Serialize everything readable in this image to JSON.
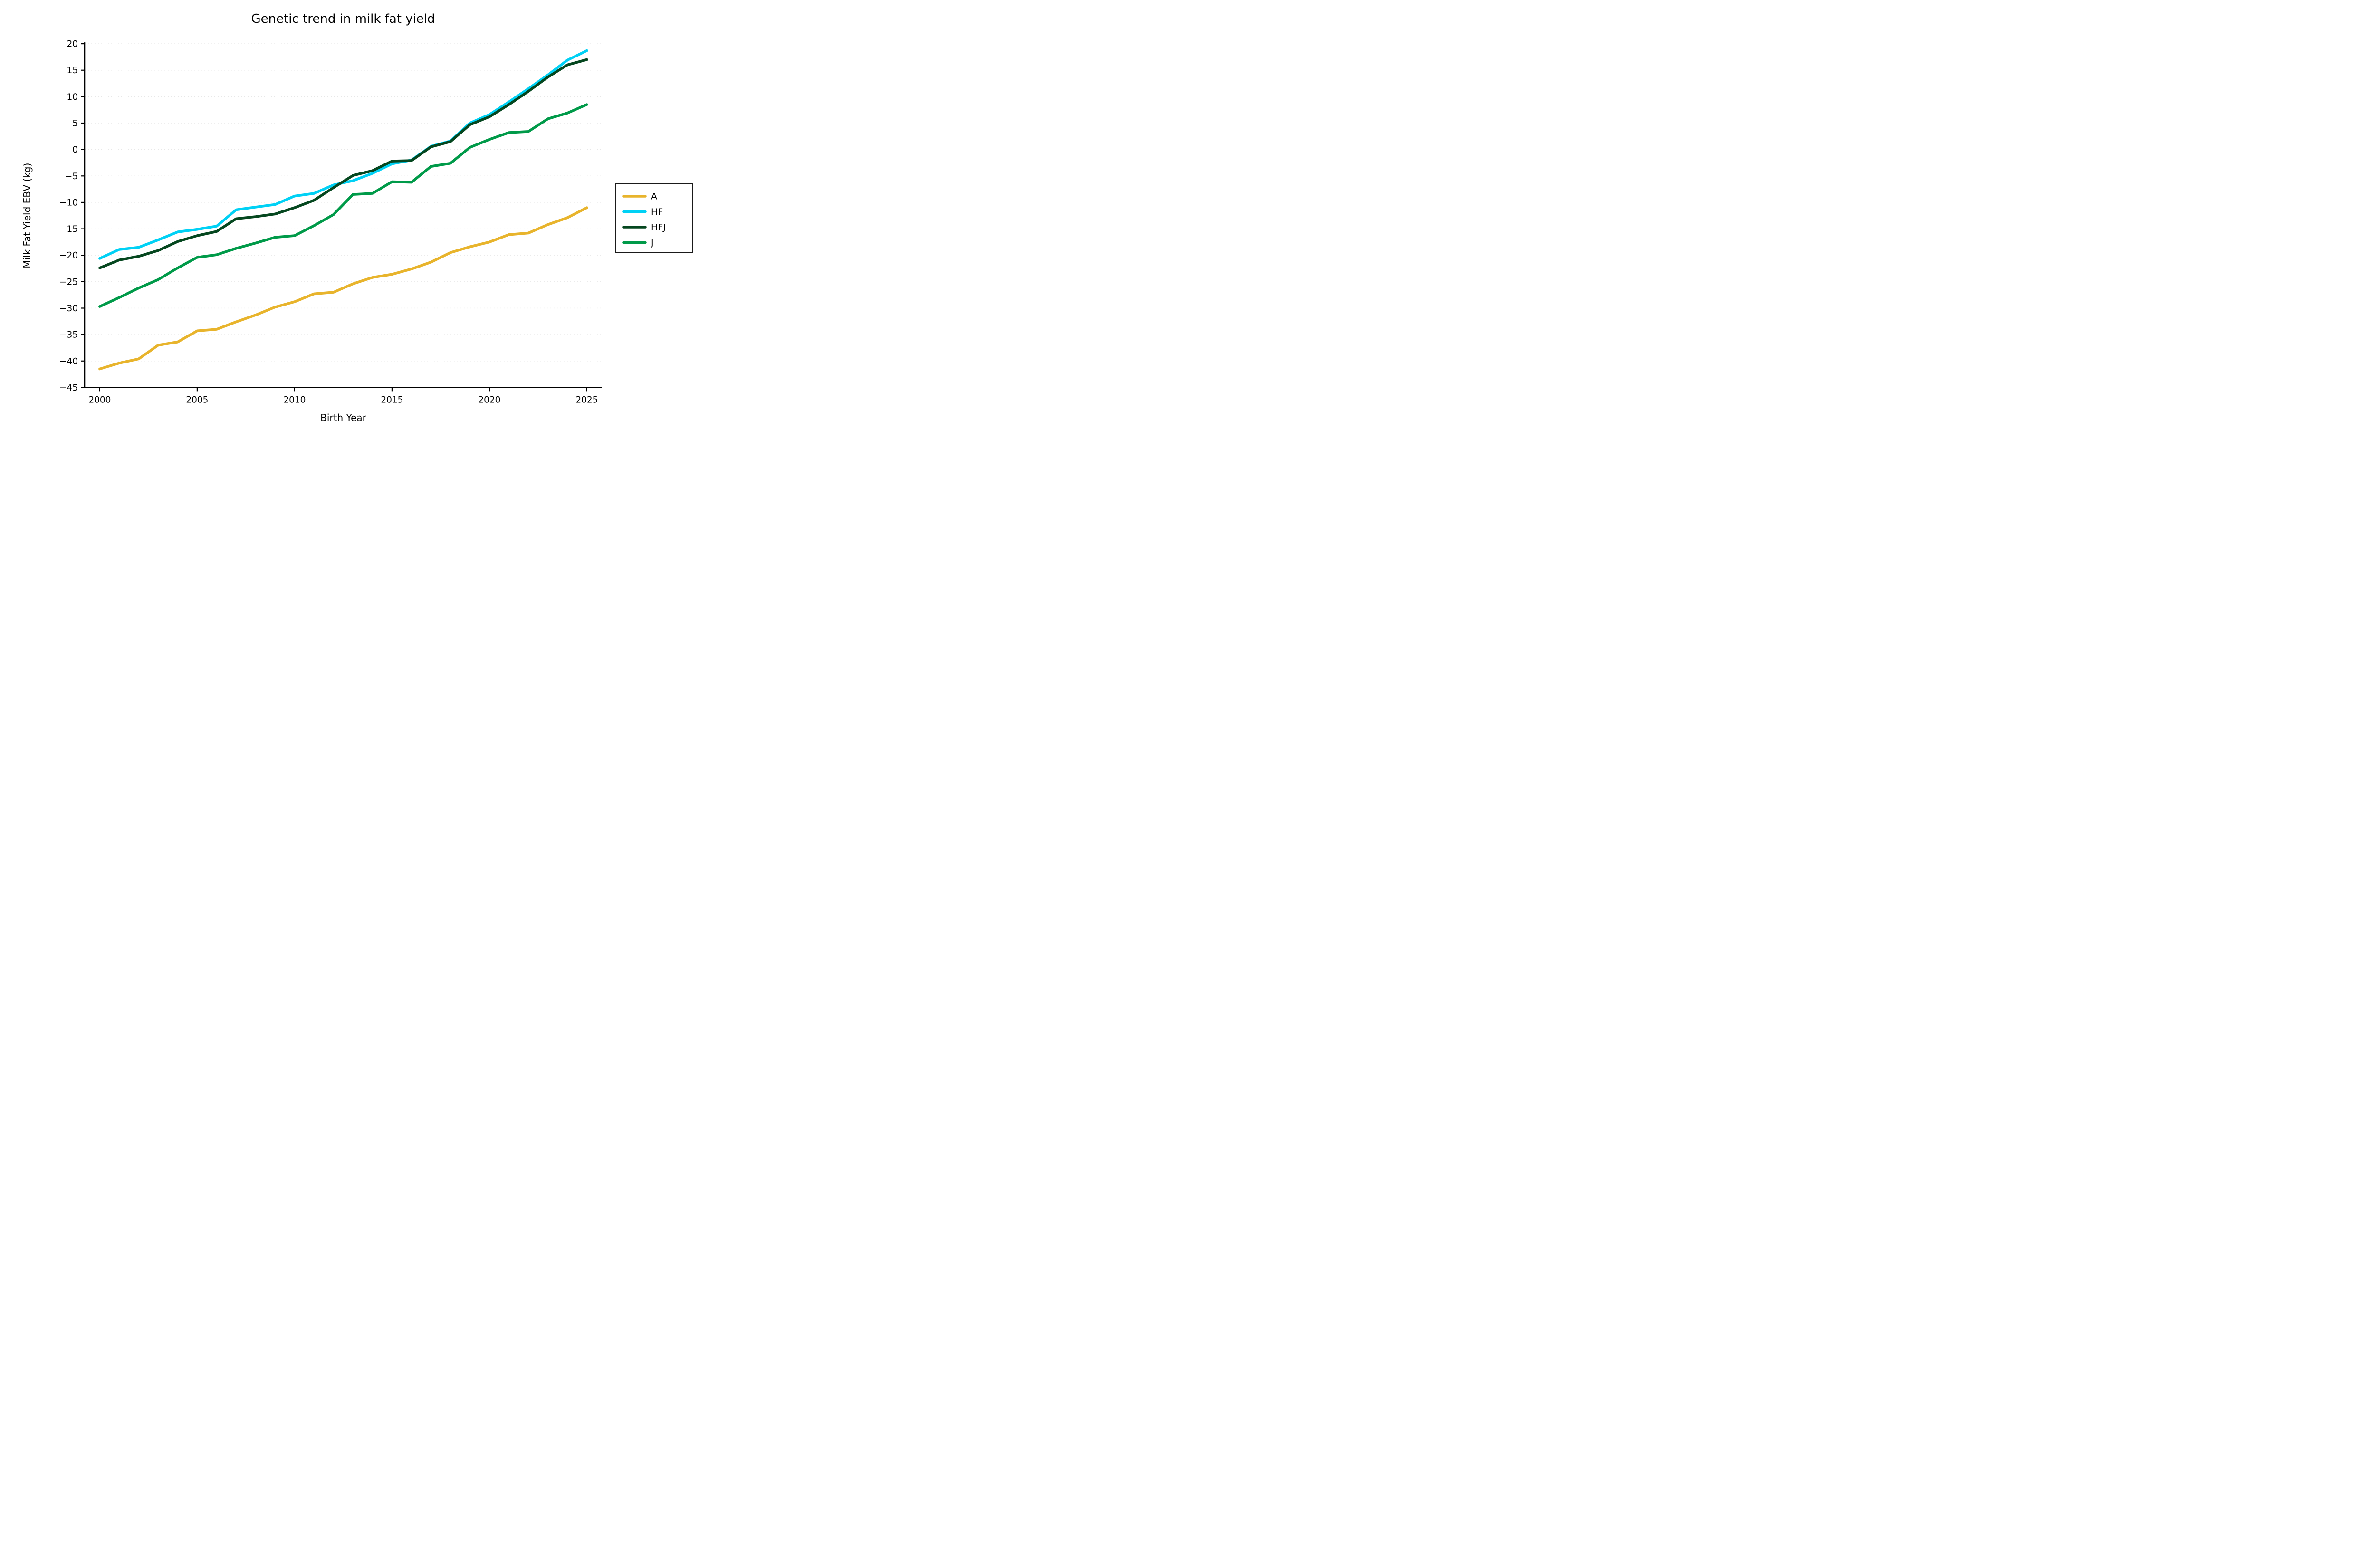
{
  "title": "Genetic trend in milk fat yield",
  "axes": {
    "x_label": "Birth Year",
    "y_label": "Milk Fat Yield EBV (kg)"
  },
  "legend": {
    "labels": [
      "A",
      "HF",
      "HFJ",
      "J"
    ]
  },
  "colors": {
    "A": "#e8b42c",
    "HF": "#00d1f5",
    "HFJ": "#05471f",
    "J": "#009a49",
    "grid": "#e7e7e7",
    "axis": "#000000"
  },
  "chart_data": {
    "type": "line",
    "title": "Genetic trend in milk fat yield",
    "xlabel": "Birth Year",
    "ylabel": "Milk Fat Yield EBV (kg)",
    "x": [
      2000,
      2001,
      2002,
      2003,
      2004,
      2005,
      2006,
      2007,
      2008,
      2009,
      2010,
      2011,
      2012,
      2013,
      2014,
      2015,
      2016,
      2017,
      2018,
      2019,
      2020,
      2021,
      2022,
      2023,
      2024,
      2025
    ],
    "series": [
      {
        "name": "A",
        "color": "#e8b42c",
        "values": [
          -41.5,
          -40.4,
          -39.6,
          -37.0,
          -36.4,
          -34.3,
          -34.0,
          -32.6,
          -31.3,
          -29.8,
          -28.8,
          -27.3,
          -27.0,
          -25.4,
          -24.2,
          -23.6,
          -22.6,
          -21.3,
          -19.5,
          -18.4,
          -17.5,
          -16.1,
          -15.8,
          -14.2,
          -12.9,
          -11.0
        ]
      },
      {
        "name": "HF",
        "color": "#00d1f5",
        "values": [
          -20.6,
          -18.9,
          -18.5,
          -17.1,
          -15.6,
          -15.1,
          -14.5,
          -11.4,
          -10.9,
          -10.4,
          -8.8,
          -8.3,
          -6.7,
          -5.9,
          -4.5,
          -2.7,
          -2.0,
          0.6,
          1.6,
          5.0,
          6.6,
          9.0,
          11.5,
          14.1,
          16.9,
          18.7
        ]
      },
      {
        "name": "HFJ",
        "color": "#05471f",
        "values": [
          -22.4,
          -20.9,
          -20.2,
          -19.1,
          -17.4,
          -16.3,
          -15.5,
          -13.1,
          -12.7,
          -12.2,
          -11.0,
          -9.6,
          -7.2,
          -4.9,
          -4.0,
          -2.2,
          -2.1,
          0.5,
          1.5,
          4.7,
          6.2,
          8.5,
          11.0,
          13.7,
          16.0,
          17.0
        ]
      },
      {
        "name": "J",
        "color": "#009a49",
        "values": [
          -29.7,
          -28.0,
          -26.2,
          -24.6,
          -22.4,
          -20.4,
          -19.9,
          -18.7,
          -17.7,
          -16.6,
          -16.3,
          -14.4,
          -12.3,
          -8.5,
          -8.3,
          -6.1,
          -6.2,
          -3.2,
          -2.6,
          0.4,
          1.9,
          3.2,
          3.4,
          5.8,
          6.9,
          8.5
        ]
      }
    ],
    "x_ticks": [
      2000,
      2005,
      2010,
      2015,
      2020,
      2025
    ],
    "y_ticks": [
      20,
      15,
      10,
      5,
      0,
      -5,
      -10,
      -15,
      -20,
      -25,
      -30,
      -35,
      -40,
      -45
    ],
    "xlim": [
      2000,
      2025
    ],
    "ylim": [
      -45,
      20
    ],
    "grid": true,
    "legend_position": "right"
  }
}
